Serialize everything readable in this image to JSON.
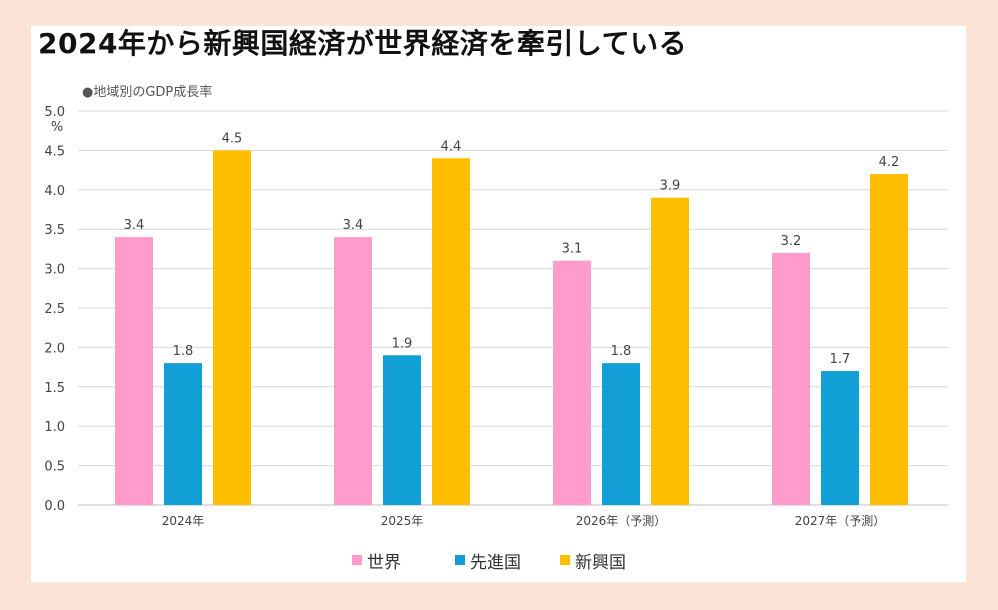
{
  "title": "2024年から新興国経済が世界経済を牽引している",
  "chart_data": {
    "type": "bar",
    "subtitle": "●地域別のGDP成長率",
    "yunit": "%",
    "categories": [
      "2024年",
      "2025年",
      "2026年（予測）",
      "2027年（予測）"
    ],
    "series": [
      {
        "name": "世界",
        "color": "#ff9ccc",
        "values": [
          3.4,
          3.4,
          3.1,
          3.2
        ]
      },
      {
        "name": "先進国",
        "color": "#129fd6",
        "values": [
          1.8,
          1.9,
          1.8,
          1.7
        ]
      },
      {
        "name": "新興国",
        "color": "#ffbe00",
        "values": [
          4.5,
          4.4,
          3.9,
          4.2
        ]
      }
    ],
    "ylim": [
      0,
      5.0
    ],
    "yticks": [
      "0.0",
      "0.5",
      "1.0",
      "1.5",
      "2.0",
      "2.5",
      "3.0",
      "3.5",
      "4.0",
      "4.5",
      "5.0"
    ],
    "grid": true,
    "legend": "bottom"
  }
}
